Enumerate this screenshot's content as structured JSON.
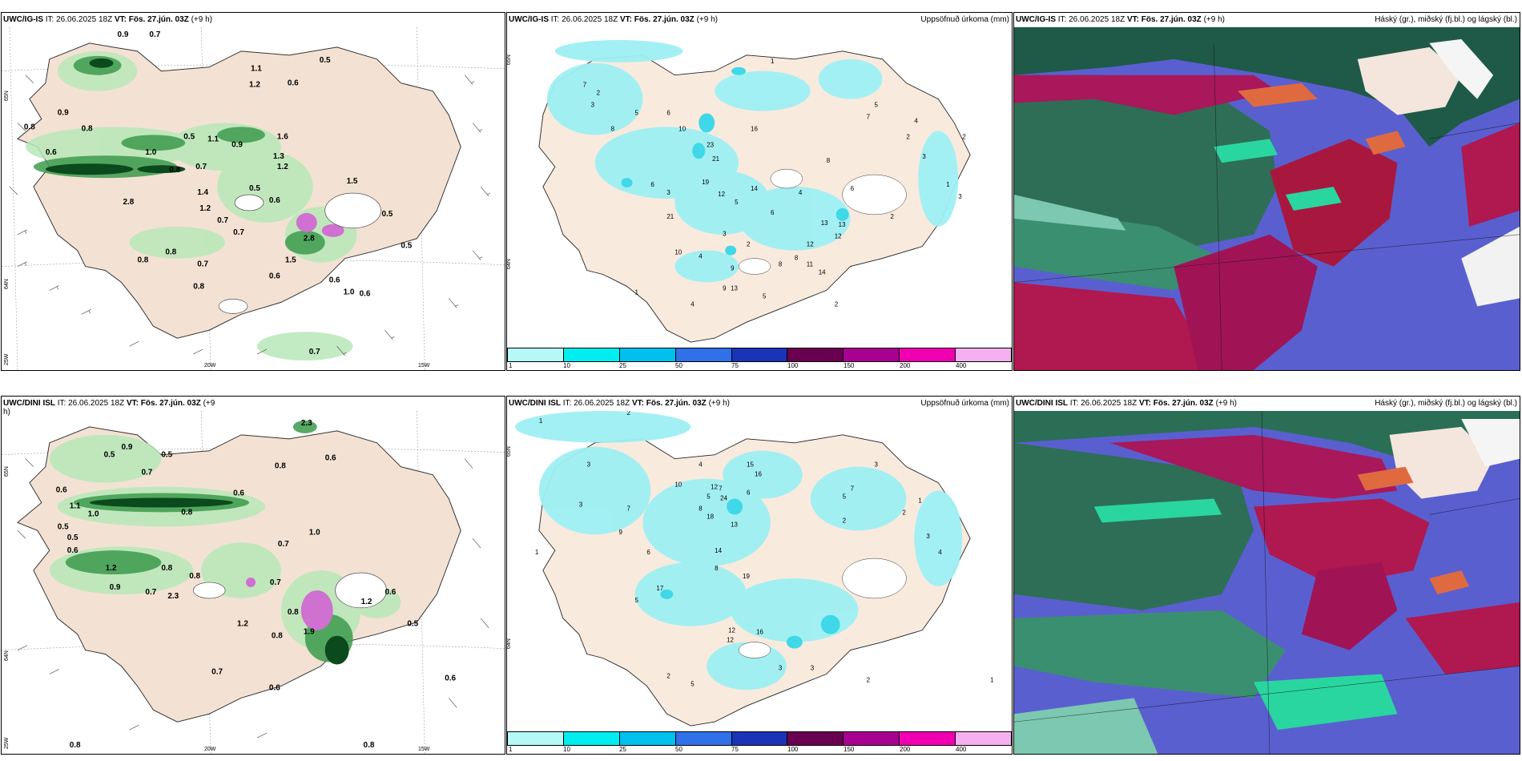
{
  "panels": {
    "wind_top": {
      "model": "UWC/IG-IS",
      "it_label": "IT:",
      "it_value": "26.06.2025 18Z",
      "vt_label": "VT:",
      "vt_value": "Fös. 27.jún. 03Z",
      "lead": "(+9 h)",
      "lat_labels": [
        "65N",
        "64N",
        "25W"
      ],
      "lon_labels": [
        "20W",
        "15W"
      ]
    },
    "precip_top": {
      "model": "UWC/IG-IS",
      "it_label": "IT:",
      "it_value": "26.06.2025 18Z",
      "vt_label": "VT:",
      "vt_value": "Fös. 27.jún. 03Z",
      "lead": "(+9 h)",
      "product": "Uppsöfnuð úrkoma (mm)",
      "lat_labels": [
        "65N",
        "64N"
      ]
    },
    "cloud_top": {
      "model": "UWC/IG-IS",
      "it_label": "IT:",
      "it_value": "26.06.2025 18Z",
      "vt_label": "VT:",
      "vt_value": "Fös. 27.jún. 03Z",
      "lead": "(+9 h)",
      "product": "Háský (gr.), miðský (fj.bl.) og lágský (bl.)"
    },
    "wind_bottom": {
      "model": "UWC/DINI ISL",
      "it_label": "IT:",
      "it_value": "26.06.2025 18Z",
      "vt_label": "VT:",
      "vt_value": "Fös. 27.jún. 03Z",
      "lead": "(+9",
      "lead2": "h)",
      "lat_labels": [
        "65N",
        "64N",
        "25W"
      ],
      "lon_labels": [
        "20W",
        "15W"
      ]
    },
    "precip_bottom": {
      "model": "UWC/DINI ISL",
      "it_label": "IT:",
      "it_value": "26.06.2025 18Z",
      "vt_label": "VT:",
      "vt_value": "Fös. 27.jún. 03Z",
      "lead": "(+9 h)",
      "product": "Uppsöfnuð úrkoma (mm)",
      "lat_labels": [
        "65N",
        "64N"
      ]
    },
    "cloud_bottom": {
      "model": "UWC/DINI ISL",
      "it_label": "IT:",
      "it_value": "26.06.2025 18Z",
      "vt_label": "VT:",
      "vt_value": "Fös. 27.jún. 03Z",
      "lead": "(+9 h)",
      "product": "Háský (gr.), miðský (fj.bl.) og lágský (bl.)"
    }
  },
  "legend": {
    "labels": [
      "1",
      "10",
      "25",
      "50",
      "75",
      "100",
      "150",
      "200",
      "400"
    ],
    "colors": [
      "#b4f8f8",
      "#00eef0",
      "#00c0ee",
      "#3070e8",
      "#1a34b8",
      "#6a0050",
      "#a80090",
      "#f000b0",
      "#f4b0f0"
    ]
  },
  "wind_values_top": [
    "0.9",
    "0.7",
    "1.1",
    "1.2",
    "0.8",
    "0.6",
    "0.9",
    "1.0",
    "0.8",
    "0.6",
    "0.8",
    "2.8",
    "1.4",
    "1.2",
    "0.7",
    "0.7",
    "0.8",
    "1.1",
    "0.9",
    "1.2",
    "0.5",
    "0.8",
    "0.6",
    "0.7",
    "1.6",
    "1.3",
    "0.5",
    "1.5",
    "2.8",
    "1.5",
    "0.6",
    "1.0",
    "0.6",
    "0.8",
    "0.7",
    "0.5",
    "0.5",
    "0.6",
    "0.7",
    "0.5"
  ],
  "wind_values_bottom": [
    "2.3",
    "0.6",
    "0.5",
    "0.9",
    "0.5",
    "0.8",
    "0.7",
    "0.6",
    "1.1",
    "1.0",
    "0.8",
    "0.6",
    "0.5",
    "0.6",
    "1.2",
    "0.9",
    "0.8",
    "0.8",
    "0.7",
    "2.3",
    "1.0",
    "0.7",
    "0.8",
    "0.7",
    "1.9",
    "1.2",
    "0.6",
    "0.8",
    "0.5",
    "0.6",
    "0.7",
    "1.2",
    "0.6",
    "0.8",
    "0.8",
    "0.5"
  ],
  "precip_values_top": [
    "1",
    "2",
    "3",
    "4",
    "5",
    "6",
    "7",
    "8",
    "10",
    "12",
    "13",
    "14",
    "16",
    "19",
    "21",
    "23",
    "12",
    "13",
    "11",
    "8",
    "6",
    "4",
    "3",
    "2",
    "1",
    "2",
    "3",
    "5",
    "7",
    "9",
    "1",
    "2",
    "4",
    "6",
    "8",
    "12",
    "14",
    "21",
    "10",
    "4",
    "2",
    "3",
    "5",
    "6",
    "13",
    "9",
    "5",
    "8",
    "2",
    "3"
  ],
  "precip_values_bottom": [
    "1",
    "2",
    "3",
    "4",
    "5",
    "6",
    "7",
    "8",
    "10",
    "12",
    "13",
    "14",
    "15",
    "16",
    "17",
    "18",
    "19",
    "24",
    "12",
    "16",
    "8",
    "7",
    "5",
    "3",
    "2",
    "1",
    "2",
    "3",
    "4",
    "6",
    "9",
    "5",
    "2",
    "1",
    "3",
    "12",
    "3",
    "5",
    "2",
    "1",
    "3",
    "7"
  ]
}
